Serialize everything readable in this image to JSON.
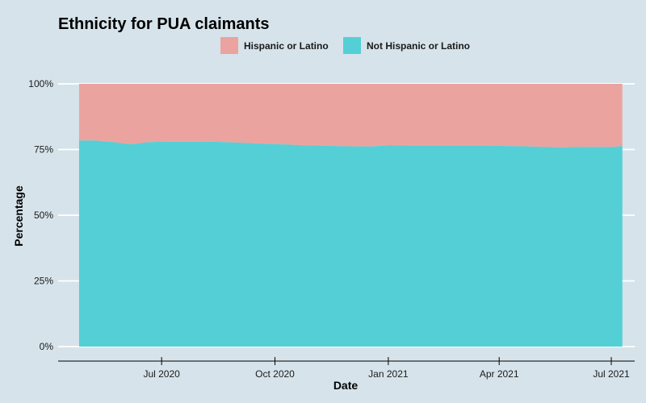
{
  "chart_data": {
    "type": "area",
    "stacked": true,
    "normalized": true,
    "title": "Ethnicity for PUA claimants",
    "xlabel": "Date",
    "ylabel": "Percentage",
    "legend_position": "top",
    "grid": true,
    "x_range": [
      "2020-04-25",
      "2021-07-10"
    ],
    "y_range": [
      0,
      100
    ],
    "x_ticks": [
      {
        "date": "2020-07-01",
        "label": "Jul 2020"
      },
      {
        "date": "2020-10-01",
        "label": "Oct 2020"
      },
      {
        "date": "2021-01-01",
        "label": "Jan 2021"
      },
      {
        "date": "2021-04-01",
        "label": "Apr 2021"
      },
      {
        "date": "2021-07-01",
        "label": "Jul 2021"
      }
    ],
    "y_ticks": [
      {
        "value": 0,
        "label": "0%"
      },
      {
        "value": 25,
        "label": "25%"
      },
      {
        "value": 50,
        "label": "50%"
      },
      {
        "value": 75,
        "label": "75%"
      },
      {
        "value": 100,
        "label": "100%"
      }
    ],
    "x": [
      "2020-04-25",
      "2020-05-09",
      "2020-05-23",
      "2020-06-06",
      "2020-06-20",
      "2020-07-04",
      "2020-07-18",
      "2020-08-01",
      "2020-08-15",
      "2020-08-29",
      "2020-09-12",
      "2020-09-26",
      "2020-10-10",
      "2020-10-24",
      "2020-11-07",
      "2020-11-21",
      "2020-12-05",
      "2020-12-19",
      "2021-01-02",
      "2021-01-16",
      "2021-01-30",
      "2021-02-13",
      "2021-02-27",
      "2021-03-13",
      "2021-03-27",
      "2021-04-10",
      "2021-04-24",
      "2021-05-08",
      "2021-05-22",
      "2021-06-05",
      "2021-06-19",
      "2021-07-03",
      "2021-07-10"
    ],
    "series": [
      {
        "name": "Not Hispanic or Latino",
        "color": "#55cfd6",
        "values": [
          78.4,
          78.4,
          77.8,
          77.0,
          77.8,
          78.0,
          78.0,
          78.0,
          77.9,
          77.7,
          77.4,
          77.1,
          76.9,
          76.6,
          76.5,
          76.3,
          76.2,
          76.2,
          76.7,
          76.5,
          76.5,
          76.5,
          76.5,
          76.5,
          76.5,
          76.3,
          76.2,
          76.0,
          75.8,
          76.0,
          76.0,
          76.0,
          76.3
        ]
      },
      {
        "name": "Hispanic or Latino",
        "color": "#eba3a0",
        "values": [
          21.6,
          21.6,
          22.2,
          23.0,
          22.2,
          22.0,
          22.0,
          22.0,
          22.1,
          22.3,
          22.6,
          22.9,
          23.1,
          23.4,
          23.5,
          23.7,
          23.8,
          23.8,
          23.3,
          23.5,
          23.5,
          23.5,
          23.5,
          23.5,
          23.5,
          23.7,
          23.8,
          24.0,
          24.2,
          24.0,
          24.0,
          24.0,
          23.7
        ]
      }
    ]
  }
}
